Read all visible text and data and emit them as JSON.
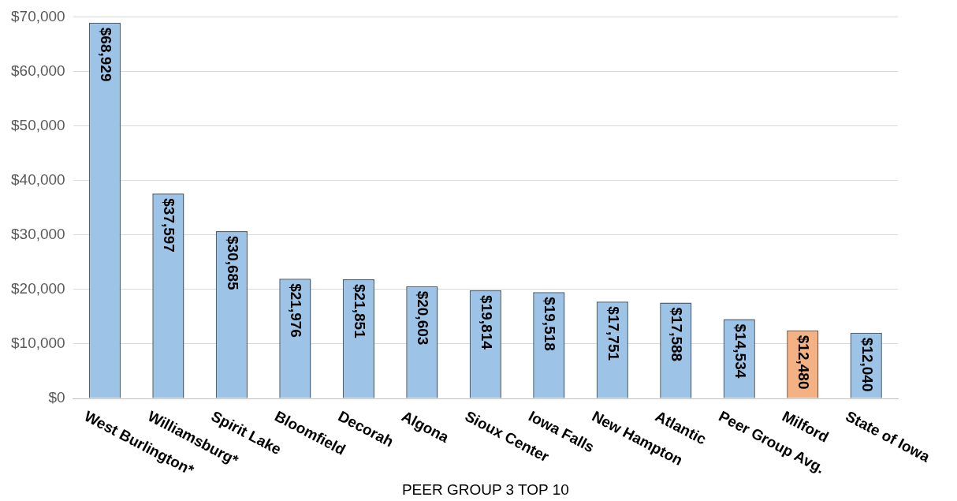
{
  "chart_data": {
    "type": "bar",
    "xlabel": "PEER GROUP 3 TOP 10",
    "categories": [
      "West Burlington*",
      "Williamsburg*",
      "Spirit Lake",
      "Bloomfield",
      "Decorah",
      "Algona",
      "Sioux Center",
      "Iowa Falls",
      "New Hampton",
      "Atlantic",
      "Peer Group Avg.",
      "Milford",
      "State of Iowa"
    ],
    "values": [
      68929,
      37597,
      30685,
      21976,
      21851,
      20603,
      19814,
      19518,
      17751,
      17588,
      14534,
      12480,
      12040
    ],
    "colors": [
      "#9dc3e6",
      "#9dc3e6",
      "#9dc3e6",
      "#9dc3e6",
      "#9dc3e6",
      "#9dc3e6",
      "#9dc3e6",
      "#9dc3e6",
      "#9dc3e6",
      "#9dc3e6",
      "#9dc3e6",
      "#f4b183",
      "#9dc3e6"
    ],
    "value_labels": [
      "$68,929",
      "$37,597",
      "$30,685",
      "$21,976",
      "$21,851",
      "$20,603",
      "$19,814",
      "$19,518",
      "$17,751",
      "$17,588",
      "$14,534",
      "$12,480",
      "$12,040"
    ],
    "ylim": [
      0,
      70000
    ],
    "yticks": [
      {
        "value": 0,
        "label": "$0"
      },
      {
        "value": 10000,
        "label": "$10,000"
      },
      {
        "value": 20000,
        "label": "$20,000"
      },
      {
        "value": 30000,
        "label": "$30,000"
      },
      {
        "value": 40000,
        "label": "$40,000"
      },
      {
        "value": 50000,
        "label": "$50,000"
      },
      {
        "value": 60000,
        "label": "$60,000"
      },
      {
        "value": 70000,
        "label": "$70,000"
      }
    ],
    "grid": "y",
    "legend": false
  }
}
